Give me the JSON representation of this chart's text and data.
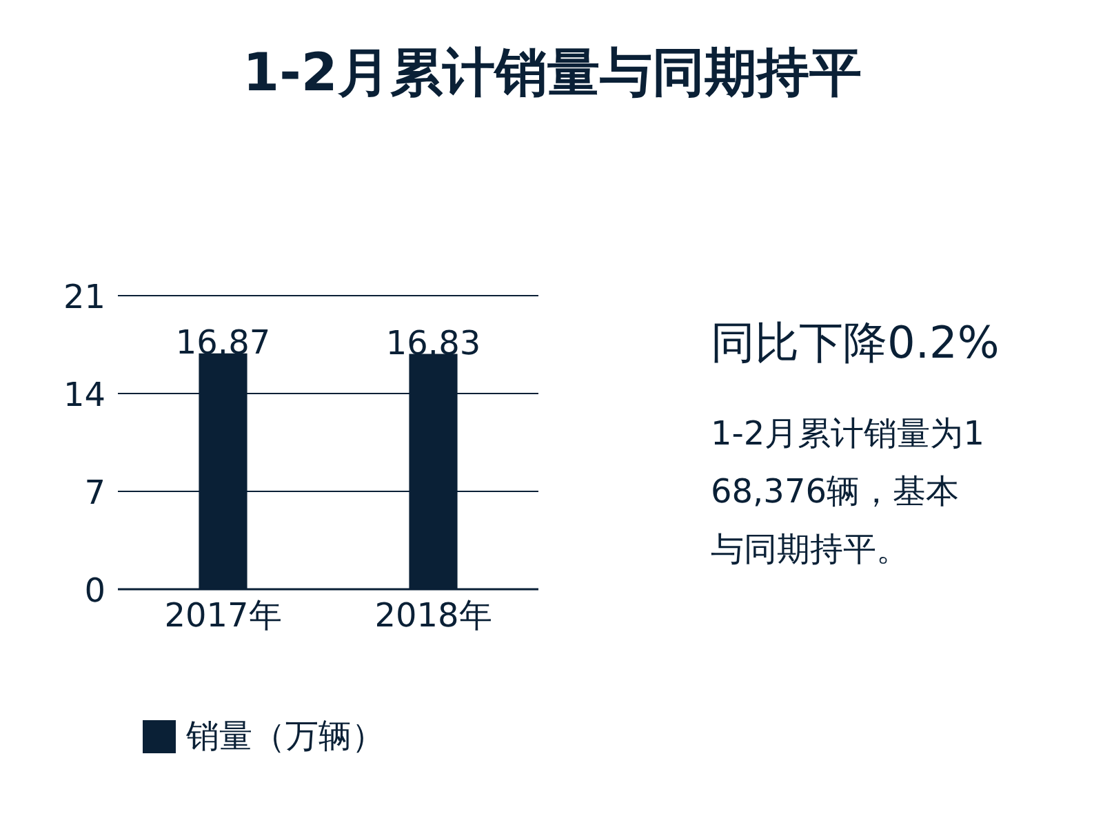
{
  "chart_data": {
    "type": "bar",
    "title": "1-2月累计销量与同期持平",
    "categories": [
      "2017年",
      "2018年"
    ],
    "series": [
      {
        "name": "销量（万辆）",
        "color": "#0a2036",
        "values": [
          16.87,
          16.83
        ]
      }
    ],
    "ylim": [
      0,
      21
    ],
    "yticks": [
      0,
      7,
      14,
      21
    ],
    "grid": "y",
    "data_labels": true,
    "legend": "bottom",
    "annotations": [
      "同比下降0.2%",
      "1-2月累计销量为168,376辆，基本与同期持平。"
    ]
  }
}
